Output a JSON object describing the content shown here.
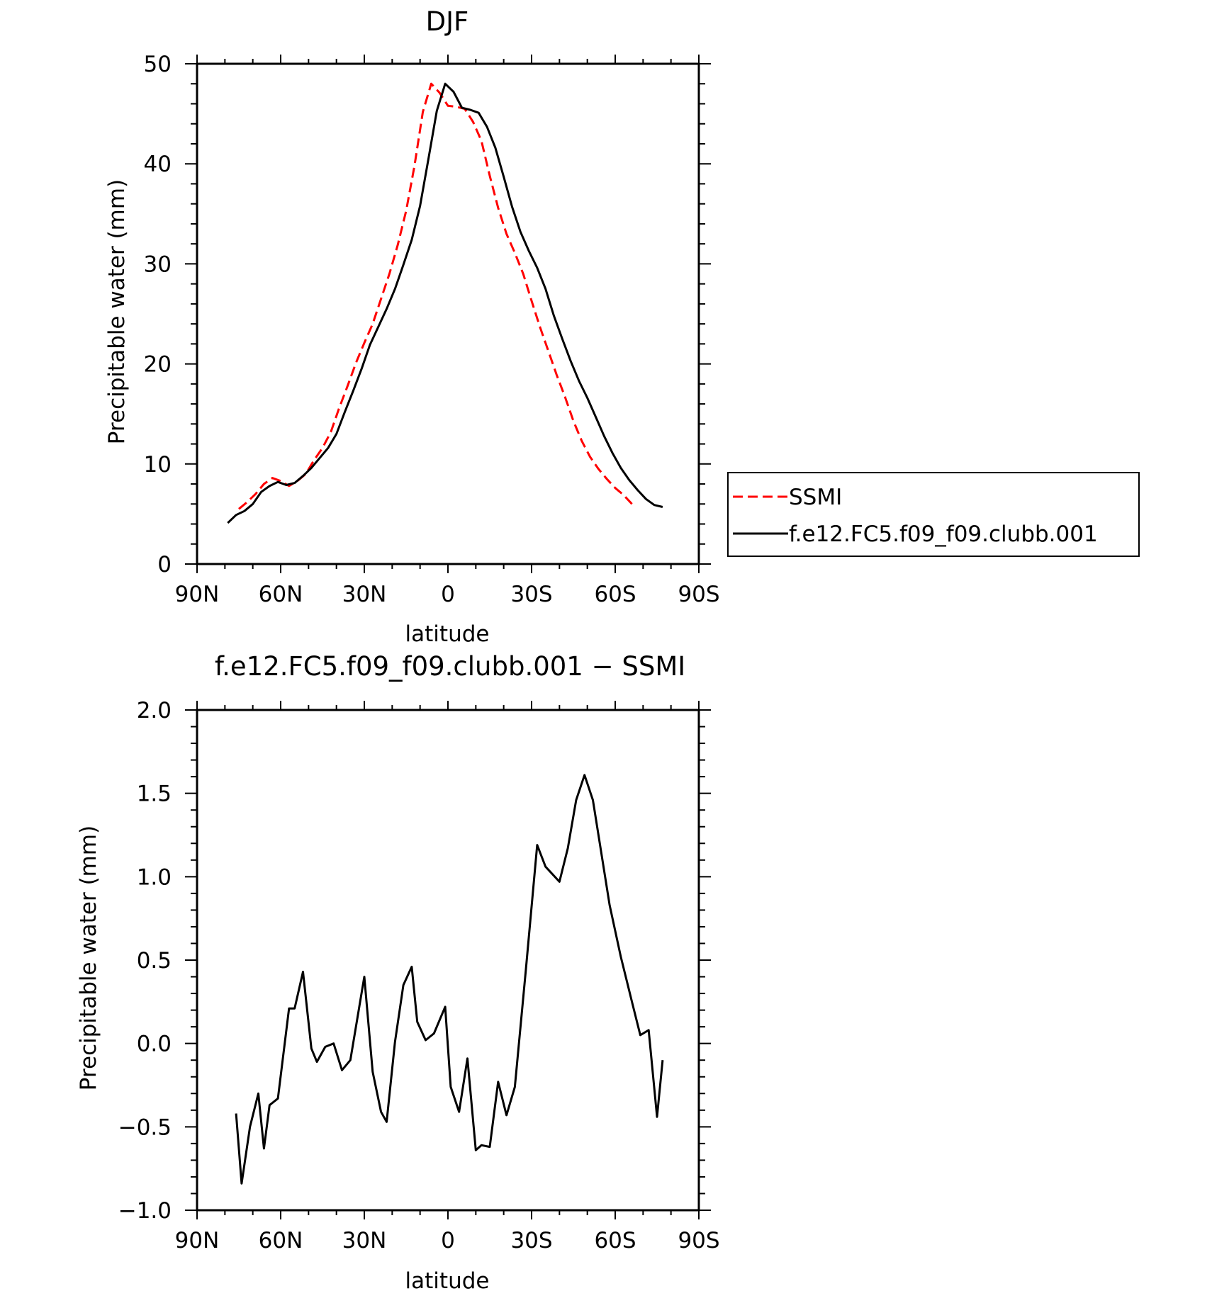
{
  "chart_data": [
    {
      "type": "line",
      "title": "DJF",
      "xlabel": "latitude",
      "ylabel": "Precipitable water (mm)",
      "xlim": [
        -90,
        90
      ],
      "ylim": [
        0,
        50
      ],
      "x_ticks": [
        -90,
        -60,
        -30,
        0,
        30,
        60,
        90
      ],
      "x_tick_labels": [
        "90N",
        "60N",
        "30N",
        "0",
        "30S",
        "60S",
        "90S"
      ],
      "y_ticks": [
        0,
        10,
        20,
        30,
        40,
        50
      ],
      "y_tick_labels": [
        "0",
        "10",
        "20",
        "30",
        "40",
        "50"
      ],
      "legend_position": "right",
      "series": [
        {
          "name": "SSMI",
          "color": "#ff0000",
          "dash": "dashed",
          "points": [
            [
              -75,
              5.5
            ],
            [
              -72,
              6.2
            ],
            [
              -69,
              7.0
            ],
            [
              -66,
              8.0
            ],
            [
              -63,
              8.6
            ],
            [
              -60,
              8.3
            ],
            [
              -57,
              7.8
            ],
            [
              -54,
              8.3
            ],
            [
              -51,
              9.0
            ],
            [
              -48,
              10.4
            ],
            [
              -45,
              11.6
            ],
            [
              -42,
              13.2
            ],
            [
              -39,
              15.6
            ],
            [
              -36,
              17.8
            ],
            [
              -33,
              20.1
            ],
            [
              -30,
              22.1
            ],
            [
              -27,
              24.0
            ],
            [
              -24,
              26.5
            ],
            [
              -21,
              29.0
            ],
            [
              -18,
              31.9
            ],
            [
              -15,
              35.3
            ],
            [
              -12,
              39.8
            ],
            [
              -9,
              45.2
            ],
            [
              -6,
              48.0
            ],
            [
              -3,
              47.1
            ],
            [
              0,
              45.8
            ],
            [
              3,
              45.7
            ],
            [
              6,
              45.5
            ],
            [
              9,
              44.2
            ],
            [
              12,
              42.3
            ],
            [
              15,
              38.8
            ],
            [
              18,
              35.6
            ],
            [
              21,
              33.0
            ],
            [
              24,
              31.1
            ],
            [
              27,
              29.0
            ],
            [
              30,
              26.3
            ],
            [
              33,
              23.7
            ],
            [
              36,
              21.3
            ],
            [
              39,
              18.9
            ],
            [
              42,
              16.7
            ],
            [
              45,
              14.3
            ],
            [
              48,
              12.3
            ],
            [
              51,
              10.7
            ],
            [
              54,
              9.5
            ],
            [
              57,
              8.5
            ],
            [
              60,
              7.6
            ],
            [
              63,
              6.9
            ],
            [
              66,
              6.0
            ]
          ]
        },
        {
          "name": "f.e12.FC5.f09_f09.clubb.001",
          "color": "#000000",
          "dash": "solid",
          "points": [
            [
              -79,
              4.1
            ],
            [
              -76,
              4.9
            ],
            [
              -73,
              5.3
            ],
            [
              -70,
              6.0
            ],
            [
              -67,
              7.2
            ],
            [
              -64,
              7.8
            ],
            [
              -61,
              8.2
            ],
            [
              -58,
              7.9
            ],
            [
              -55,
              8.1
            ],
            [
              -52,
              8.8
            ],
            [
              -49,
              9.6
            ],
            [
              -46,
              10.6
            ],
            [
              -43,
              11.6
            ],
            [
              -40,
              13.0
            ],
            [
              -37,
              15.2
            ],
            [
              -34,
              17.3
            ],
            [
              -31,
              19.5
            ],
            [
              -28,
              21.9
            ],
            [
              -25,
              23.7
            ],
            [
              -22,
              25.5
            ],
            [
              -19,
              27.5
            ],
            [
              -16,
              29.9
            ],
            [
              -13,
              32.4
            ],
            [
              -10,
              35.8
            ],
            [
              -7,
              40.5
            ],
            [
              -4,
              45.3
            ],
            [
              -1,
              48.0
            ],
            [
              2,
              47.2
            ],
            [
              5,
              45.6
            ],
            [
              8,
              45.4
            ],
            [
              11,
              45.1
            ],
            [
              14,
              43.7
            ],
            [
              17,
              41.6
            ],
            [
              20,
              38.7
            ],
            [
              23,
              35.7
            ],
            [
              26,
              33.2
            ],
            [
              29,
              31.3
            ],
            [
              32,
              29.6
            ],
            [
              35,
              27.5
            ],
            [
              38,
              24.8
            ],
            [
              41,
              22.5
            ],
            [
              44,
              20.3
            ],
            [
              47,
              18.3
            ],
            [
              50,
              16.6
            ],
            [
              53,
              14.7
            ],
            [
              56,
              12.8
            ],
            [
              59,
              11.1
            ],
            [
              62,
              9.6
            ],
            [
              65,
              8.4
            ],
            [
              68,
              7.4
            ],
            [
              71,
              6.5
            ],
            [
              74,
              5.9
            ],
            [
              77,
              5.7
            ]
          ]
        }
      ]
    },
    {
      "type": "line",
      "title": "f.e12.FC5.f09_f09.clubb.001 − SSMI",
      "xlabel": "latitude",
      "ylabel": "Precipitable water (mm)",
      "xlim": [
        -90,
        90
      ],
      "ylim": [
        -1.0,
        2.0
      ],
      "x_ticks": [
        -90,
        -60,
        -30,
        0,
        30,
        60,
        90
      ],
      "x_tick_labels": [
        "90N",
        "60N",
        "30N",
        "0",
        "30S",
        "60S",
        "90S"
      ],
      "y_ticks": [
        -1.0,
        -0.5,
        0.0,
        0.5,
        1.0,
        1.5,
        2.0
      ],
      "y_tick_labels": [
        "−1.0",
        "−0.5",
        "0.0",
        "0.5",
        "1.0",
        "1.5",
        "2.0"
      ],
      "series": [
        {
          "name": "",
          "color": "#000000",
          "dash": "solid",
          "points": [
            [
              -76,
              -0.42
            ],
            [
              -74,
              -0.84
            ],
            [
              -71,
              -0.5
            ],
            [
              -68,
              -0.3
            ],
            [
              -66,
              -0.63
            ],
            [
              -64,
              -0.37
            ],
            [
              -61,
              -0.33
            ],
            [
              -57,
              0.21
            ],
            [
              -55,
              0.21
            ],
            [
              -52,
              0.43
            ],
            [
              -49,
              -0.03
            ],
            [
              -47,
              -0.11
            ],
            [
              -44,
              -0.02
            ],
            [
              -41,
              0.0
            ],
            [
              -38,
              -0.16
            ],
            [
              -35,
              -0.1
            ],
            [
              -30,
              0.4
            ],
            [
              -27,
              -0.17
            ],
            [
              -24,
              -0.41
            ],
            [
              -22,
              -0.47
            ],
            [
              -19,
              0.01
            ],
            [
              -16,
              0.35
            ],
            [
              -13,
              0.46
            ],
            [
              -11,
              0.13
            ],
            [
              -8,
              0.02
            ],
            [
              -5,
              0.06
            ],
            [
              -1,
              0.22
            ],
            [
              1,
              -0.26
            ],
            [
              4,
              -0.41
            ],
            [
              7,
              -0.09
            ],
            [
              10,
              -0.64
            ],
            [
              12,
              -0.61
            ],
            [
              15,
              -0.62
            ],
            [
              18,
              -0.23
            ],
            [
              21,
              -0.43
            ],
            [
              24,
              -0.26
            ],
            [
              28,
              0.45
            ],
            [
              32,
              1.19
            ],
            [
              35,
              1.06
            ],
            [
              40,
              0.97
            ],
            [
              43,
              1.17
            ],
            [
              46,
              1.46
            ],
            [
              49,
              1.61
            ],
            [
              52,
              1.46
            ],
            [
              58,
              0.83
            ],
            [
              62,
              0.52
            ],
            [
              66,
              0.25
            ],
            [
              69,
              0.05
            ],
            [
              72,
              0.08
            ],
            [
              75,
              -0.44
            ],
            [
              77,
              -0.1
            ]
          ]
        }
      ]
    }
  ]
}
